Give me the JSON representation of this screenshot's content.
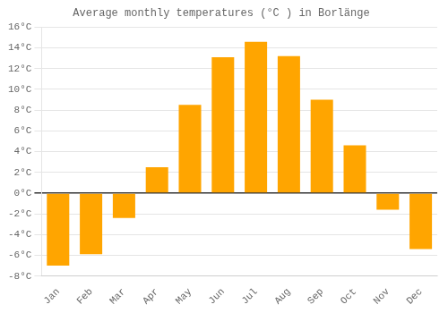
{
  "chart_data": {
    "type": "bar",
    "title": "Average monthly temperatures (°C ) in Borlänge",
    "categories": [
      "Jan",
      "Feb",
      "Mar",
      "Apr",
      "May",
      "Jun",
      "Jul",
      "Aug",
      "Sep",
      "Oct",
      "Nov",
      "Dec"
    ],
    "values": [
      -7.0,
      -5.9,
      -2.4,
      2.5,
      8.5,
      13.1,
      14.6,
      13.2,
      9.0,
      4.6,
      -1.6,
      -5.4
    ],
    "color": "#FFA500",
    "ylim": [
      -8,
      16
    ],
    "yticks": [
      {
        "value": -8,
        "label": "-8°C"
      },
      {
        "value": -6,
        "label": "-6°C"
      },
      {
        "value": -4,
        "label": "-4°C"
      },
      {
        "value": -2,
        "label": "-2°C"
      },
      {
        "value": 0,
        "label": "0°C"
      },
      {
        "value": 2,
        "label": "2°C"
      },
      {
        "value": 4,
        "label": "4°C"
      },
      {
        "value": 6,
        "label": "6°C"
      },
      {
        "value": 8,
        "label": "8°C"
      },
      {
        "value": 10,
        "label": "10°C"
      },
      {
        "value": 12,
        "label": "12°C"
      },
      {
        "value": 14,
        "label": "14°C"
      },
      {
        "value": 16,
        "label": "16°C"
      }
    ],
    "grid": true
  }
}
